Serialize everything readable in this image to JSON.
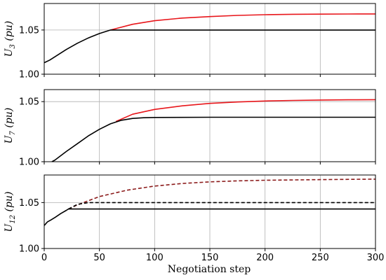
{
  "figure": {
    "xlabel": "Negotiation step"
  },
  "chart_data": [
    {
      "type": "line",
      "ylabel": "U3 (pu)",
      "ylabel_parts": {
        "base": "U",
        "sub": "3",
        "unit": " (pu)"
      },
      "xlim": [
        0,
        300
      ],
      "ylim": [
        1.0,
        1.08
      ],
      "xticks": [
        0,
        50,
        100,
        150,
        200,
        250,
        300
      ],
      "yticks": [
        1.0,
        1.05
      ],
      "ytick_labels": [
        "1.00",
        "1.05"
      ],
      "grid": true,
      "series": [
        {
          "color": "#e8161b",
          "dash": false,
          "x": [
            60,
            80,
            100,
            125,
            150,
            175,
            200,
            225,
            250,
            275,
            300
          ],
          "y": [
            1.05,
            1.0565,
            1.0605,
            1.0635,
            1.0652,
            1.0665,
            1.0673,
            1.0678,
            1.068,
            1.0681,
            1.0682
          ]
        },
        {
          "color": "#000000",
          "dash": false,
          "x": [
            0,
            5,
            10,
            20,
            30,
            40,
            50,
            60,
            70,
            100,
            150,
            200,
            250,
            300
          ],
          "y": [
            1.013,
            1.016,
            1.02,
            1.028,
            1.035,
            1.041,
            1.046,
            1.05,
            1.05,
            1.05,
            1.05,
            1.05,
            1.05,
            1.05
          ]
        }
      ]
    },
    {
      "type": "line",
      "ylabel": "U7 (pu)",
      "ylabel_parts": {
        "base": "U",
        "sub": "7",
        "unit": " (pu)"
      },
      "xlim": [
        0,
        300
      ],
      "ylim": [
        1.0,
        1.06
      ],
      "xticks": [
        0,
        50,
        100,
        150,
        200,
        250,
        300
      ],
      "yticks": [
        1.0,
        1.05
      ],
      "ytick_labels": [
        "1.00",
        "1.05"
      ],
      "grid": true,
      "series": [
        {
          "color": "#e8161b",
          "dash": false,
          "x": [
            65,
            80,
            100,
            125,
            150,
            175,
            200,
            225,
            250,
            275,
            300
          ],
          "y": [
            1.0335,
            1.0395,
            1.0435,
            1.0465,
            1.0485,
            1.0497,
            1.0505,
            1.051,
            1.0513,
            1.0515,
            1.0516
          ]
        },
        {
          "color": "#000000",
          "dash": false,
          "x": [
            7,
            10,
            20,
            30,
            40,
            50,
            60,
            70,
            80,
            90,
            100,
            150,
            200,
            250,
            300
          ],
          "y": [
            1.0,
            1.0015,
            1.0085,
            1.015,
            1.0215,
            1.027,
            1.0315,
            1.0345,
            1.036,
            1.0366,
            1.0368,
            1.037,
            1.037,
            1.037,
            1.037
          ]
        }
      ]
    },
    {
      "type": "line",
      "ylabel": "U12 (pu)",
      "ylabel_parts": {
        "base": "U",
        "sub": "12",
        "unit": " (pu)"
      },
      "xlim": [
        0,
        300
      ],
      "ylim": [
        1.0,
        1.08
      ],
      "xticks": [
        0,
        50,
        100,
        150,
        200,
        250,
        300
      ],
      "xtick_labels": [
        "0",
        "50",
        "100",
        "150",
        "200",
        "250",
        "300"
      ],
      "yticks": [
        1.0,
        1.05
      ],
      "ytick_labels": [
        "1.00",
        "1.05"
      ],
      "grid": true,
      "series": [
        {
          "color": "#8b1a1a",
          "dash": true,
          "x": [
            22,
            30,
            40,
            50,
            75,
            100,
            125,
            150,
            175,
            200,
            250,
            300
          ],
          "y": [
            1.043,
            1.0475,
            1.052,
            1.0565,
            1.0635,
            1.068,
            1.0708,
            1.0725,
            1.0736,
            1.0743,
            1.075,
            1.0755
          ]
        },
        {
          "color": "#000000",
          "dash": true,
          "x": [
            22,
            30,
            40,
            50,
            100,
            150,
            200,
            250,
            300
          ],
          "y": [
            1.043,
            1.048,
            1.05,
            1.05,
            1.05,
            1.05,
            1.05,
            1.05,
            1.05
          ]
        },
        {
          "color": "#000000",
          "dash": false,
          "x": [
            0,
            3,
            6,
            10,
            15,
            20,
            22,
            30,
            50,
            100,
            150,
            200,
            250,
            300
          ],
          "y": [
            1.025,
            1.029,
            1.031,
            1.034,
            1.038,
            1.0415,
            1.043,
            1.043,
            1.043,
            1.043,
            1.043,
            1.043,
            1.043,
            1.043
          ]
        }
      ]
    }
  ]
}
